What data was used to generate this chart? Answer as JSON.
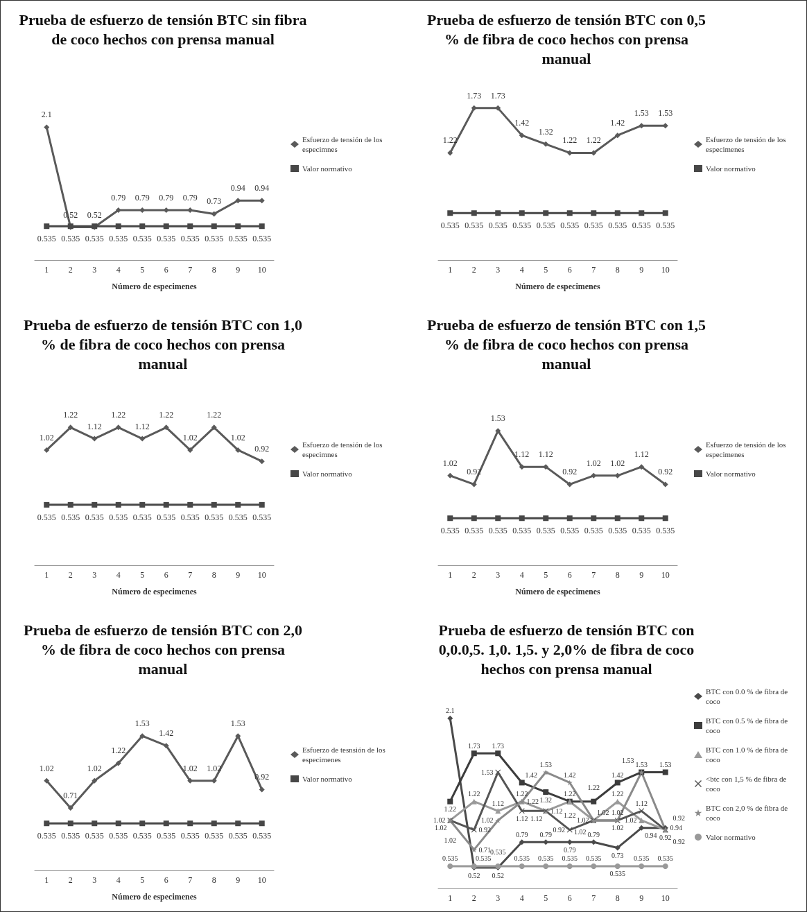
{
  "chart_data": [
    {
      "type": "line",
      "title": "Prueba de esfuerzo de tensión BTC sin fibra de coco hechos con prensa manual",
      "xlabel": "Número de especimenes",
      "categories": [
        "1",
        "2",
        "3",
        "4",
        "5",
        "6",
        "7",
        "8",
        "9",
        "10"
      ],
      "grid": false,
      "legend": "right",
      "data_labels": true,
      "line_style": "solid",
      "series": [
        {
          "name": "Esfuerzo de tensión de los especimnes",
          "color": "#5a5a5a",
          "marker": "diamond",
          "values": [
            2.1,
            0.52,
            0.52,
            0.79,
            0.79,
            0.79,
            0.79,
            0.73,
            0.94,
            0.94
          ]
        },
        {
          "name": "Valor normativo",
          "color": "#474747",
          "marker": "square",
          "values": [
            0.535,
            0.535,
            0.535,
            0.535,
            0.535,
            0.535,
            0.535,
            0.535,
            0.535,
            0.535
          ]
        }
      ]
    },
    {
      "type": "line",
      "title": "Prueba de esfuerzo de tensión BTC con 0,5 % de fibra de coco hechos con prensa manual",
      "xlabel": "Número de especimenes",
      "categories": [
        "1",
        "2",
        "3",
        "4",
        "5",
        "6",
        "7",
        "8",
        "9",
        "10"
      ],
      "grid": false,
      "legend": "right",
      "data_labels": true,
      "line_style": "solid",
      "series": [
        {
          "name": "Esfuerzo de tensión de los especimenes",
          "color": "#5a5a5a",
          "marker": "diamond",
          "values": [
            1.22,
            1.73,
            1.73,
            1.42,
            1.32,
            1.22,
            1.22,
            1.42,
            1.53,
            1.53
          ]
        },
        {
          "name": "Valor normativo",
          "color": "#474747",
          "marker": "square",
          "values": [
            0.535,
            0.535,
            0.535,
            0.535,
            0.535,
            0.535,
            0.535,
            0.535,
            0.535,
            0.535
          ]
        }
      ]
    },
    {
      "type": "line",
      "title": "Prueba de esfuerzo de tensión BTC con 1,0 % de fibra de coco hechos con prensa manual",
      "xlabel": "Número de especimenes",
      "categories": [
        "1",
        "2",
        "3",
        "4",
        "5",
        "6",
        "7",
        "8",
        "9",
        "10"
      ],
      "grid": false,
      "legend": "right",
      "data_labels": true,
      "line_style": "solid",
      "series": [
        {
          "name": "Esfuerzo de tensión de los especimnes",
          "color": "#5a5a5a",
          "marker": "diamond",
          "values": [
            1.02,
            1.22,
            1.12,
            1.22,
            1.12,
            1.22,
            1.02,
            1.22,
            1.02,
            0.92
          ]
        },
        {
          "name": "Valor normativo",
          "color": "#474747",
          "marker": "square",
          "values": [
            0.535,
            0.535,
            0.535,
            0.535,
            0.535,
            0.535,
            0.535,
            0.535,
            0.535,
            0.535
          ]
        }
      ]
    },
    {
      "type": "line",
      "title": "Prueba de esfuerzo de tensión BTC con 1,5 % de fibra de coco hechos con prensa manual",
      "xlabel": "Número de especimenes",
      "categories": [
        "1",
        "2",
        "3",
        "4",
        "5",
        "6",
        "7",
        "8",
        "9",
        "10"
      ],
      "grid": false,
      "legend": "right",
      "data_labels": true,
      "line_style": "solid",
      "series": [
        {
          "name": "Esfuerzo de tensión de los especimenes",
          "color": "#5a5a5a",
          "marker": "diamond",
          "values": [
            1.02,
            0.92,
            1.53,
            1.12,
            1.12,
            0.92,
            1.02,
            1.02,
            1.12,
            0.92
          ]
        },
        {
          "name": "Valor normativo",
          "color": "#474747",
          "marker": "square",
          "values": [
            0.535,
            0.535,
            0.535,
            0.535,
            0.535,
            0.535,
            0.535,
            0.535,
            0.535,
            0.535
          ]
        }
      ]
    },
    {
      "type": "line",
      "title": "Prueba de esfuerzo de tensión BTC con 2,0 % de fibra de coco hechos con prensa manual",
      "xlabel": "Número de especimenes",
      "categories": [
        "1",
        "2",
        "3",
        "4",
        "5",
        "6",
        "7",
        "8",
        "9",
        "10"
      ],
      "grid": false,
      "legend": "right",
      "data_labels": true,
      "line_style": "solid",
      "series": [
        {
          "name": "Esfuerzo de tesnsión de los especimenes",
          "color": "#5a5a5a",
          "marker": "diamond",
          "values": [
            1.02,
            0.71,
            1.02,
            1.22,
            1.53,
            1.42,
            1.02,
            1.02,
            1.53,
            0.92
          ]
        },
        {
          "name": "Valor normativo",
          "color": "#474747",
          "marker": "square",
          "values": [
            0.535,
            0.535,
            0.535,
            0.535,
            0.535,
            0.535,
            0.535,
            0.535,
            0.535,
            0.535
          ]
        }
      ]
    },
    {
      "type": "line",
      "title": "Prueba de esfuerzo de tensión BTC con 0,0.0,5. 1,0. 1,5. y 2,0% de fibra de coco hechos con prensa manual",
      "categories": [
        "1",
        "2",
        "3",
        "4",
        "5",
        "6",
        "7",
        "8",
        "9",
        "10"
      ],
      "grid": false,
      "legend": "right",
      "data_labels": true,
      "line_style": "solid",
      "series": [
        {
          "name": "BTC con 0.0 % de fibra de coco",
          "color": "#4a4a4a",
          "marker": "diamond",
          "values": [
            2.1,
            0.52,
            0.52,
            0.79,
            0.79,
            0.79,
            0.79,
            0.73,
            0.94,
            0.94
          ]
        },
        {
          "name": "BTC con 0.5 % de fibra de coco",
          "color": "#3c3c3c",
          "marker": "square",
          "values": [
            1.22,
            1.73,
            1.73,
            1.42,
            1.32,
            1.22,
            1.22,
            1.42,
            1.53,
            1.53
          ]
        },
        {
          "name": "BTC con 1.0 % de fibra de coco",
          "color": "#9a9a9a",
          "marker": "triangle",
          "values": [
            1.02,
            1.22,
            1.12,
            1.22,
            1.12,
            1.22,
            1.02,
            1.22,
            1.02,
            0.92
          ]
        },
        {
          "name": "<btc con 1,5 % de fibra de coco",
          "color": "#555555",
          "marker": "cross",
          "values": [
            1.02,
            0.92,
            1.53,
            1.12,
            1.12,
            0.92,
            1.02,
            1.02,
            1.12,
            0.92
          ]
        },
        {
          "name": "BTC con 2,0 % de fibra de coco",
          "color": "#8a8a8a",
          "marker": "star",
          "values": [
            1.02,
            0.71,
            1.02,
            1.22,
            1.53,
            1.42,
            1.02,
            1.02,
            1.53,
            0.92
          ]
        },
        {
          "name": "Valor normativo",
          "color": "#999999",
          "marker": "circle",
          "values": [
            0.535,
            0.535,
            0.535,
            0.535,
            0.535,
            0.535,
            0.535,
            0.535,
            0.535,
            0.535
          ]
        }
      ]
    }
  ]
}
